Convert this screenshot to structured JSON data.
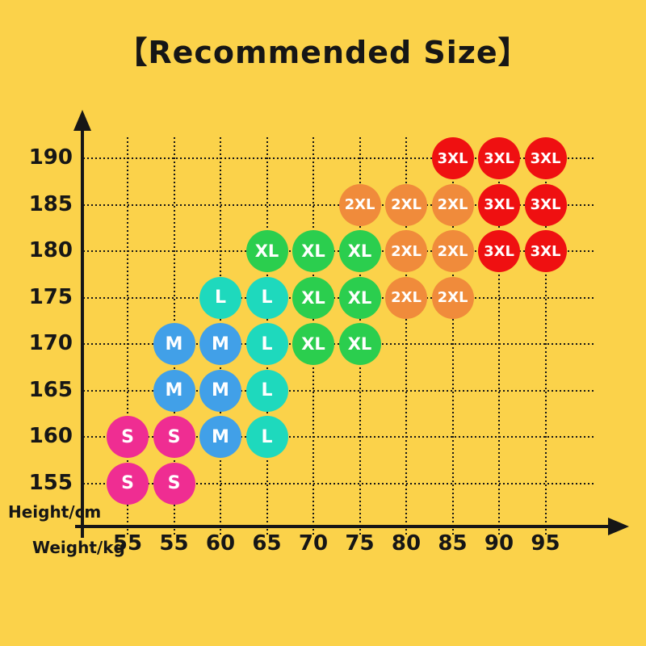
{
  "title": "【Recommended Size】",
  "colors": {
    "background": "#FBD24A",
    "ink": "#161616",
    "bubble_text": "#FFFFFF",
    "S": "#EF2D92",
    "M": "#41A0E8",
    "L": "#1ED9BD",
    "XL": "#2BCE4E",
    "2XL": "#F08B3B",
    "3XL": "#EF1011"
  },
  "chart_data": {
    "type": "scatter",
    "title": "【Recommended Size】",
    "xlabel": "Weight/kg",
    "ylabel": "Height/cm",
    "x_ticks": [
      "55",
      "55",
      "60",
      "65",
      "70",
      "75",
      "80",
      "85",
      "90",
      "95"
    ],
    "y_ticks": [
      190,
      185,
      180,
      175,
      170,
      165,
      160,
      155
    ],
    "grid": "dotted",
    "legend_position": "none",
    "note": "points are [x_column_index, height_cm]; x column labels repeat 55 twice as printed",
    "series": [
      {
        "name": "S",
        "color": "#EF2D92",
        "points": [
          [
            0,
            160
          ],
          [
            1,
            160
          ],
          [
            0,
            155
          ],
          [
            1,
            155
          ]
        ]
      },
      {
        "name": "M",
        "color": "#41A0E8",
        "points": [
          [
            1,
            170
          ],
          [
            2,
            170
          ],
          [
            1,
            165
          ],
          [
            2,
            165
          ],
          [
            2,
            160
          ]
        ]
      },
      {
        "name": "L",
        "color": "#1ED9BD",
        "points": [
          [
            2,
            175
          ],
          [
            3,
            175
          ],
          [
            3,
            170
          ],
          [
            3,
            165
          ],
          [
            3,
            160
          ]
        ]
      },
      {
        "name": "XL",
        "color": "#2BCE4E",
        "points": [
          [
            3,
            180
          ],
          [
            4,
            180
          ],
          [
            5,
            180
          ],
          [
            4,
            175
          ],
          [
            5,
            175
          ],
          [
            4,
            170
          ],
          [
            5,
            170
          ]
        ]
      },
      {
        "name": "2XL",
        "color": "#F08B3B",
        "points": [
          [
            5,
            185
          ],
          [
            6,
            185
          ],
          [
            7,
            185
          ],
          [
            6,
            180
          ],
          [
            7,
            180
          ],
          [
            6,
            175
          ],
          [
            7,
            175
          ]
        ]
      },
      {
        "name": "3XL",
        "color": "#EF1011",
        "points": [
          [
            7,
            190
          ],
          [
            8,
            190
          ],
          [
            9,
            190
          ],
          [
            8,
            185
          ],
          [
            9,
            185
          ],
          [
            8,
            180
          ],
          [
            9,
            180
          ]
        ]
      }
    ]
  }
}
